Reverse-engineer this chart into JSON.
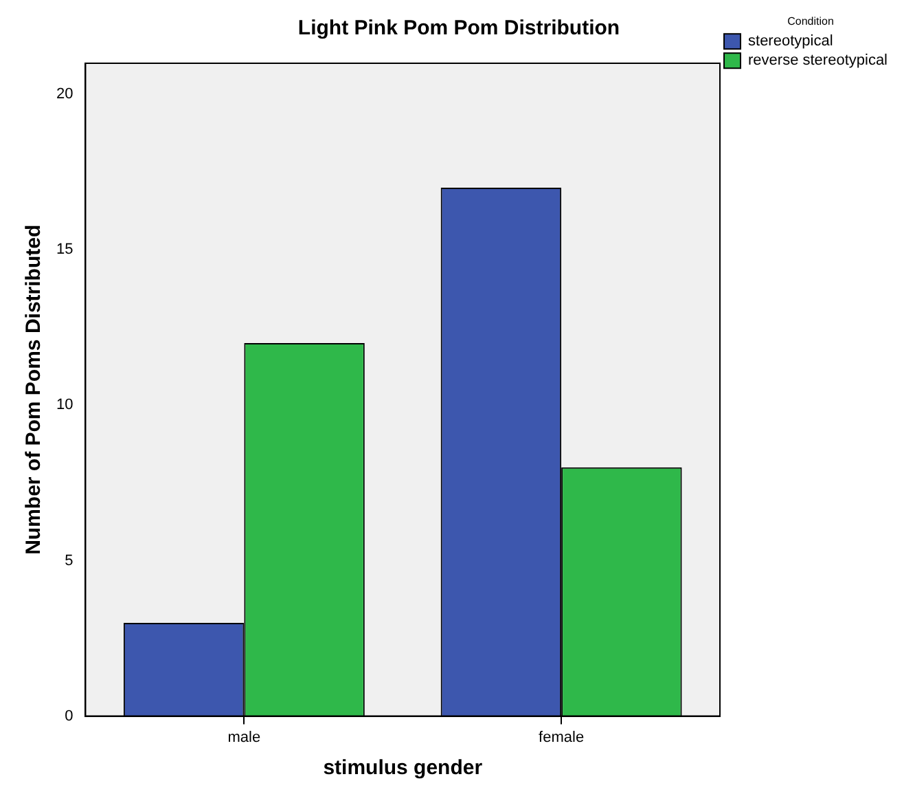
{
  "chart_data": {
    "type": "bar",
    "title": "Light Pink Pom Pom Distribution",
    "xlabel": "stimulus gender",
    "ylabel": "Number of Pom Poms Distributed",
    "legend_title": "Condition",
    "legend": "top right",
    "categories": [
      "male",
      "female"
    ],
    "series": [
      {
        "name": "stereotypical",
        "color": "#3d57ae",
        "values": [
          3,
          17
        ]
      },
      {
        "name": "reverse stereotypical",
        "color": "#2fb84a",
        "values": [
          12,
          8
        ]
      }
    ],
    "ylim": [
      0,
      21
    ],
    "yticks": [
      0,
      5,
      10,
      15,
      20
    ]
  }
}
